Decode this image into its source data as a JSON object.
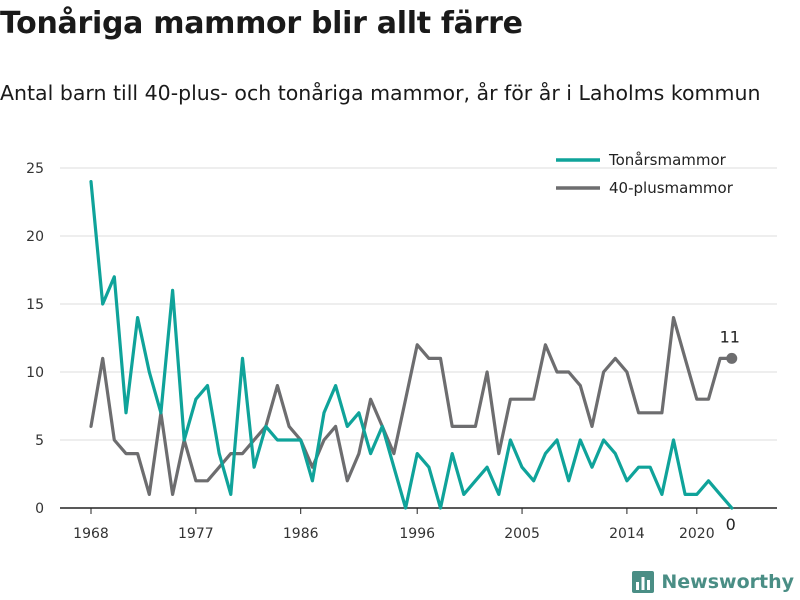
{
  "title": "Tonåriga mammor blir allt färre",
  "subtitle": "Antal barn till 40-plus- och tonåriga mammor, år för år i Laholms kommun",
  "brand": {
    "name": "Newsworthy",
    "icon": "newsworthy-logo-icon"
  },
  "colors": {
    "teen": "#0fa39a",
    "forty": "#6d6d6f",
    "grid": "#dedede",
    "axis": "#222222"
  },
  "chart_data": {
    "type": "line",
    "title": "Tonåriga mammor blir allt färre",
    "subtitle": "Antal barn till 40-plus- och tonåriga mammor, år för år i Laholms kommun",
    "x": [
      1968,
      1969,
      1970,
      1971,
      1972,
      1973,
      1974,
      1975,
      1976,
      1977,
      1978,
      1979,
      1980,
      1981,
      1982,
      1983,
      1984,
      1985,
      1986,
      1987,
      1988,
      1989,
      1990,
      1991,
      1992,
      1993,
      1994,
      1995,
      1996,
      1997,
      1998,
      1999,
      2000,
      2001,
      2002,
      2003,
      2004,
      2005,
      2006,
      2007,
      2008,
      2009,
      2010,
      2011,
      2012,
      2013,
      2014,
      2015,
      2016,
      2017,
      2018,
      2019,
      2020,
      2021,
      2022,
      2023
    ],
    "x_ticks": [
      "1968",
      "1977",
      "1986",
      "1996",
      "2005",
      "2014",
      "2020"
    ],
    "y_ticks": [
      "0",
      "5",
      "10",
      "15",
      "20",
      "25"
    ],
    "ylim": [
      0,
      25
    ],
    "legend_position": "top-right",
    "grid": true,
    "series": [
      {
        "name": "Tonårsmammor",
        "color": "#0fa39a",
        "values": [
          24,
          15,
          17,
          7,
          14,
          10,
          7,
          16,
          5,
          8,
          9,
          4,
          1,
          11,
          3,
          6,
          5,
          5,
          5,
          2,
          7,
          9,
          6,
          7,
          4,
          6,
          3,
          0,
          4,
          3,
          0,
          4,
          1,
          2,
          3,
          1,
          5,
          3,
          2,
          4,
          5,
          2,
          5,
          3,
          5,
          4,
          2,
          3,
          3,
          1,
          5,
          1,
          1,
          2,
          1,
          0
        ],
        "end_label": "0"
      },
      {
        "name": "40-plusmammor",
        "color": "#6d6d6f",
        "values": [
          6,
          11,
          5,
          4,
          4,
          1,
          7,
          1,
          5,
          2,
          2,
          3,
          4,
          4,
          5,
          6,
          9,
          6,
          5,
          3,
          5,
          6,
          2,
          4,
          8,
          6,
          4,
          8,
          12,
          11,
          11,
          6,
          6,
          6,
          10,
          4,
          8,
          8,
          8,
          12,
          10,
          10,
          9,
          6,
          10,
          11,
          10,
          7,
          7,
          7,
          14,
          11,
          8,
          8,
          11,
          11
        ],
        "end_label": "11"
      }
    ]
  }
}
